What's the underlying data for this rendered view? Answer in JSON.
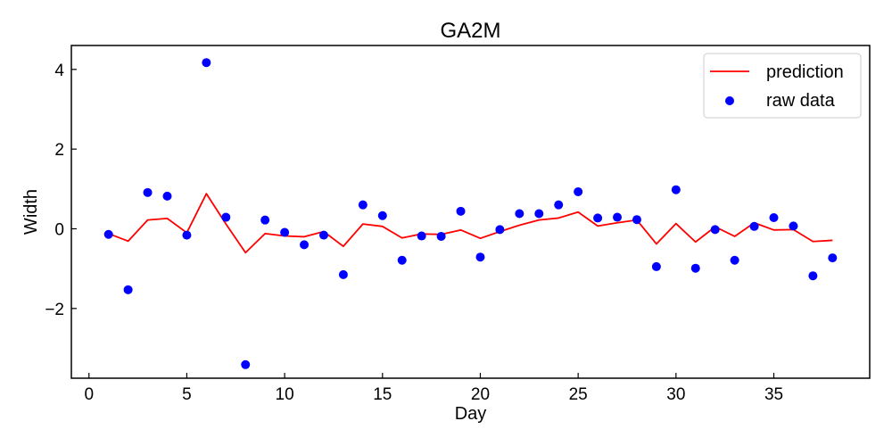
{
  "chart_data": {
    "type": "scatter",
    "title": "GA2M",
    "xlabel": "Day",
    "ylabel": "Width",
    "xlim": [
      -0.9,
      39.9
    ],
    "ylim": [
      -3.75,
      4.6
    ],
    "xticks": [
      0,
      5,
      10,
      15,
      20,
      25,
      30,
      35
    ],
    "yticks": [
      -2,
      0,
      2,
      4
    ],
    "grid": false,
    "legend_position": "top-right",
    "series": [
      {
        "name": "prediction",
        "kind": "line",
        "color": "#ff0000",
        "x": [
          1,
          2,
          3,
          4,
          5,
          6,
          7,
          8,
          9,
          10,
          11,
          12,
          13,
          14,
          15,
          16,
          17,
          18,
          19,
          20,
          21,
          22,
          23,
          24,
          25,
          26,
          27,
          28,
          29,
          30,
          31,
          32,
          33,
          34,
          35,
          36,
          37,
          38
        ],
        "y": [
          -0.12,
          -0.31,
          0.22,
          0.26,
          -0.1,
          0.88,
          0.12,
          -0.6,
          -0.12,
          -0.18,
          -0.2,
          -0.07,
          -0.44,
          0.12,
          0.06,
          -0.23,
          -0.13,
          -0.14,
          -0.03,
          -0.24,
          -0.07,
          0.09,
          0.22,
          0.27,
          0.42,
          0.07,
          0.15,
          0.22,
          -0.38,
          0.13,
          -0.33,
          0.05,
          -0.19,
          0.15,
          -0.03,
          -0.02,
          -0.32,
          -0.29
        ]
      },
      {
        "name": "raw data",
        "kind": "scatter",
        "color": "#0000ff",
        "x": [
          1,
          2,
          3,
          4,
          5,
          6,
          7,
          8,
          9,
          10,
          11,
          12,
          13,
          14,
          15,
          16,
          17,
          18,
          19,
          20,
          21,
          22,
          23,
          24,
          25,
          26,
          27,
          28,
          29,
          30,
          31,
          32,
          33,
          34,
          35,
          36,
          37,
          38
        ],
        "y": [
          -0.14,
          -1.53,
          0.91,
          0.82,
          -0.16,
          4.17,
          0.29,
          -3.41,
          0.22,
          -0.09,
          -0.4,
          -0.16,
          -1.15,
          0.6,
          0.33,
          -0.79,
          -0.18,
          -0.19,
          0.44,
          -0.71,
          -0.02,
          0.38,
          0.38,
          0.6,
          0.93,
          0.27,
          0.29,
          0.23,
          -0.95,
          0.98,
          -0.99,
          -0.02,
          -0.79,
          0.06,
          0.28,
          0.07,
          -1.18,
          -0.73
        ]
      }
    ]
  }
}
